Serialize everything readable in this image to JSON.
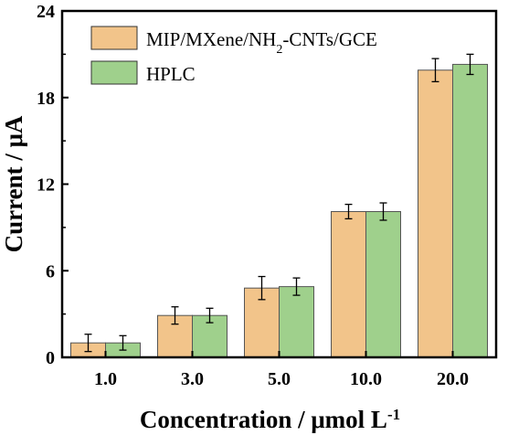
{
  "chart_data": {
    "type": "bar",
    "categories": [
      "1.0",
      "3.0",
      "5.0",
      "10.0",
      "20.0"
    ],
    "series": [
      {
        "name_parts": [
          "MIP/MXene/NH",
          "2",
          "-CNTs/GCE"
        ],
        "values": [
          1.0,
          2.9,
          4.8,
          10.1,
          19.9
        ],
        "errors": [
          0.6,
          0.6,
          0.8,
          0.5,
          0.8
        ],
        "color": "#F2C48A"
      },
      {
        "name": "HPLC",
        "values": [
          1.0,
          2.9,
          4.9,
          10.1,
          20.3
        ],
        "errors": [
          0.5,
          0.5,
          0.6,
          0.6,
          0.7
        ],
        "color": "#9FD08C"
      }
    ],
    "y_ticks": [
      "0",
      "6",
      "12",
      "18",
      "24"
    ],
    "ylim": [
      0,
      24
    ],
    "xlabel_parts": [
      "Concentration / μmol L",
      "-1"
    ],
    "ylabel": "Current / μA",
    "legend_position": "top-left",
    "grid": false
  }
}
